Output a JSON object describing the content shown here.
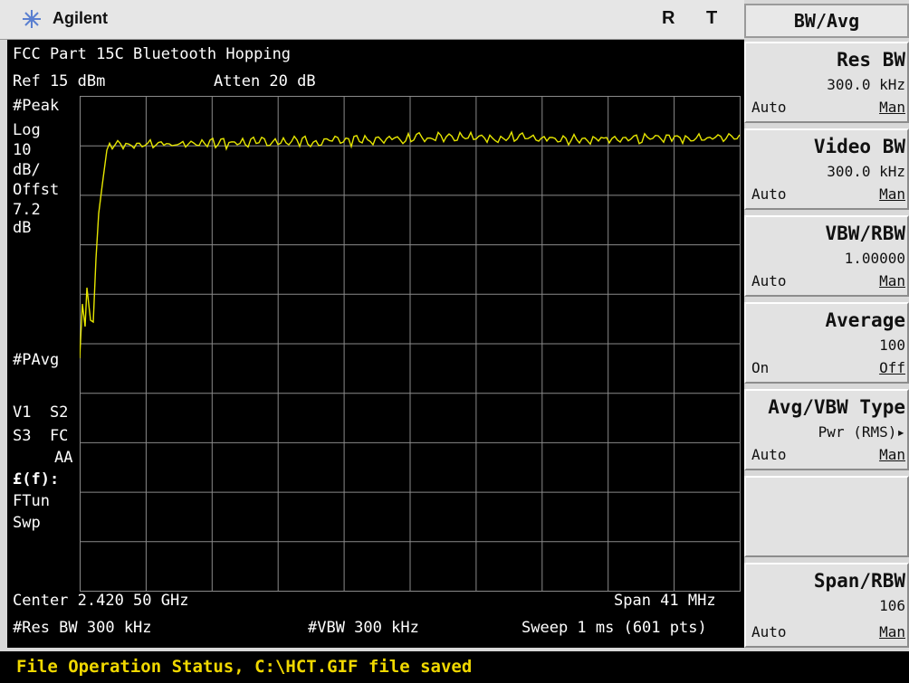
{
  "header": {
    "brand": "Agilent",
    "indicator_r": "R",
    "indicator_t": "T"
  },
  "screen": {
    "title": "FCC Part 15C Bluetooth Hopping",
    "ref": "Ref 15 dBm",
    "atten": "Atten 20 dB",
    "left_labels": {
      "peak": "#Peak",
      "log": "Log",
      "scale_val": "10",
      "scale_unit": "dB/",
      "offst": "Offst",
      "offst_val": "7.2",
      "offst_unit": "dB",
      "pavg": "#PAvg",
      "v1s2": "V1  S2",
      "s3fc": "S3  FC",
      "aa": "AA",
      "ef": "£(f):",
      "ftun": "FTun",
      "swp": "Swp"
    },
    "center": "Center 2.420 50 GHz",
    "span": "Span 41 MHz",
    "res_bw": "#Res BW 300 kHz",
    "vbw": "#VBW 300 kHz",
    "sweep": "Sweep 1 ms (601 pts)",
    "trace_color": "#e6e600",
    "grid_color": "#8a8a8a"
  },
  "menu": {
    "title": "BW/Avg",
    "keys": [
      {
        "label": "Res BW",
        "value": "300.0 kHz",
        "left": "Auto",
        "right": "Man"
      },
      {
        "label": "Video BW",
        "value": "300.0 kHz",
        "left": "Auto",
        "right": "Man"
      },
      {
        "label": "VBW/RBW",
        "value": "1.00000",
        "left": "Auto",
        "right": "Man"
      },
      {
        "label": "Average",
        "value": "100",
        "left": "On",
        "right": "Off"
      },
      {
        "label": "Avg/VBW Type",
        "value": "Pwr (RMS)▸",
        "left": "Auto",
        "right": "Man"
      },
      {
        "label": "",
        "value": "",
        "left": "",
        "right": ""
      },
      {
        "label": "Span/RBW",
        "value": "106",
        "left": "Auto",
        "right": "Man"
      }
    ]
  },
  "status": {
    "text": "File Operation Status, C:\\HCT.GIF file saved",
    "color": "#f0d800"
  }
}
